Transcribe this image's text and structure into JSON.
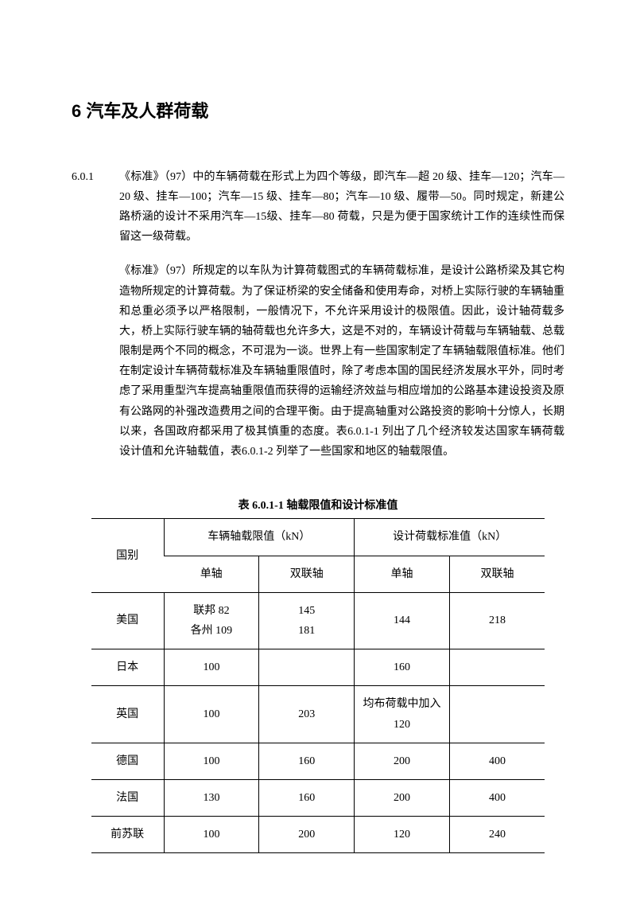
{
  "chapter": {
    "title": "6  汽车及人群荷载"
  },
  "section": {
    "number": "6.0.1",
    "para1": "《标准》（97）中的车辆荷载在形式上为四个等级，即汽车—超 20 级、挂车—120；汽车—20 级、挂车—100；汽车—15 级、挂车—80；汽车—10 级、履带—50。同时规定，新建公路桥涵的设计不采用汽车—15级、挂车—80 荷载，只是为便于国家统计工作的连续性而保留这一级荷载。",
    "para2": "《标准》（97）所规定的以车队为计算荷载图式的车辆荷载标准，是设计公路桥梁及其它构造物所规定的计算荷载。为了保证桥梁的安全储备和使用寿命，对桥上实际行驶的车辆轴重和总重必须予以严格限制，一般情况下，不允许采用设计的极限值。因此，设计轴荷载多大，桥上实际行驶车辆的轴荷载也允许多大，这是不对的，车辆设计荷载与车辆轴载、总载限制是两个不同的概念，不可混为一谈。世界上有一些国家制定了车辆轴载限值标准。他们在制定设计车辆荷载标准及车辆轴重限值时，除了考虑本国的国民经济发展水平外，同时考虑了采用重型汽车提高轴重限值而获得的运输经济效益与相应增加的公路基本建设投资及原有公路网的补强改造费用之间的合理平衡。由于提高轴重对公路投资的影响十分惊人，长期以来，各国政府都采用了极其慎重的态度。表6.0.1-1 列出了几个经济较发达国家车辆荷载设计值和允许轴载值，表6.0.1-2 列举了一些国家和地区的轴载限值。"
  },
  "table": {
    "title": "表 6.0.1-1  轴载限值和设计标准值",
    "header": {
      "country": "国别",
      "limit_header": "车辆轴载限值（kN）",
      "design_header": "设计荷载标准值（kN）",
      "single": "单轴",
      "double": "双联轴"
    },
    "rows": [
      {
        "country": "美国",
        "limit_single_l1": "联邦 82",
        "limit_single_l2": "各州 109",
        "limit_double_l1": "145",
        "limit_double_l2": "181",
        "design_single": "144",
        "design_double": "218"
      },
      {
        "country": "日本",
        "limit_single": "100",
        "limit_double": "",
        "design_single": "160",
        "design_double": ""
      },
      {
        "country": "英国",
        "limit_single": "100",
        "limit_double": "203",
        "design_single": "均布荷载中加入 120",
        "design_double": ""
      },
      {
        "country": "德国",
        "limit_single": "100",
        "limit_double": "160",
        "design_single": "200",
        "design_double": "400"
      },
      {
        "country": "法国",
        "limit_single": "130",
        "limit_double": "160",
        "design_single": "200",
        "design_double": "400"
      },
      {
        "country": "前苏联",
        "limit_single": "100",
        "limit_double": "200",
        "design_single": "120",
        "design_double": "240"
      }
    ]
  }
}
